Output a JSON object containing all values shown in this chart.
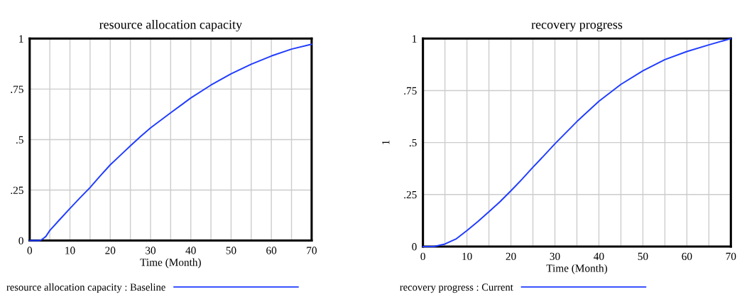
{
  "chart_data": [
    {
      "type": "line",
      "title": "resource allocation capacity",
      "xlabel": "Time (Month)",
      "x": [
        0,
        2.5,
        3,
        4,
        5,
        7.5,
        10,
        12.5,
        15,
        17.5,
        20,
        22.5,
        25,
        27.5,
        30,
        35,
        40,
        45,
        50,
        55,
        60,
        65,
        70
      ],
      "series": [
        {
          "name": "resource allocation capacity : Baseline",
          "color": "#1f3cff",
          "values": [
            0,
            0,
            0.005,
            0.02,
            0.05,
            0.105,
            0.159,
            0.212,
            0.263,
            0.32,
            0.375,
            0.422,
            0.469,
            0.515,
            0.558,
            0.633,
            0.706,
            0.77,
            0.826,
            0.873,
            0.914,
            0.948,
            0.972
          ]
        }
      ],
      "xlim": [
        0,
        70
      ],
      "xticks": [
        0,
        10,
        20,
        30,
        40,
        50,
        60,
        70
      ],
      "ylim": [
        0,
        1
      ],
      "yticks": [
        0,
        {
          "value": 0.25,
          "label": ".25"
        },
        {
          "value": 0.5,
          "label": ".5"
        },
        {
          "value": 0.75,
          "label": ".75"
        },
        1
      ],
      "grid": true,
      "legend": "bottom"
    },
    {
      "type": "line",
      "title": "recovery progress",
      "xlabel": "Time (Month)",
      "ylabel": "1",
      "x": [
        0,
        2.5,
        5,
        7.5,
        10,
        12.5,
        15,
        17.5,
        20,
        22.5,
        25,
        27.5,
        30,
        35,
        40,
        45,
        50,
        55,
        60,
        65,
        70
      ],
      "series": [
        {
          "name": "recovery progress : Current",
          "color": "#1f3cff",
          "values": [
            0,
            0,
            0.012,
            0.036,
            0.077,
            0.12,
            0.167,
            0.215,
            0.268,
            0.323,
            0.381,
            0.437,
            0.494,
            0.601,
            0.699,
            0.78,
            0.845,
            0.899,
            0.938,
            0.97,
            1.0
          ]
        }
      ],
      "xlim": [
        0,
        70
      ],
      "xticks": [
        0,
        10,
        20,
        30,
        40,
        50,
        60,
        70
      ],
      "ylim": [
        0,
        1
      ],
      "yticks": [
        0,
        {
          "value": 0.25,
          "label": ".25"
        },
        {
          "value": 0.5,
          "label": ".5"
        },
        {
          "value": 0.75,
          "label": ".75"
        },
        1
      ],
      "grid": true,
      "legend": "bottom"
    }
  ]
}
